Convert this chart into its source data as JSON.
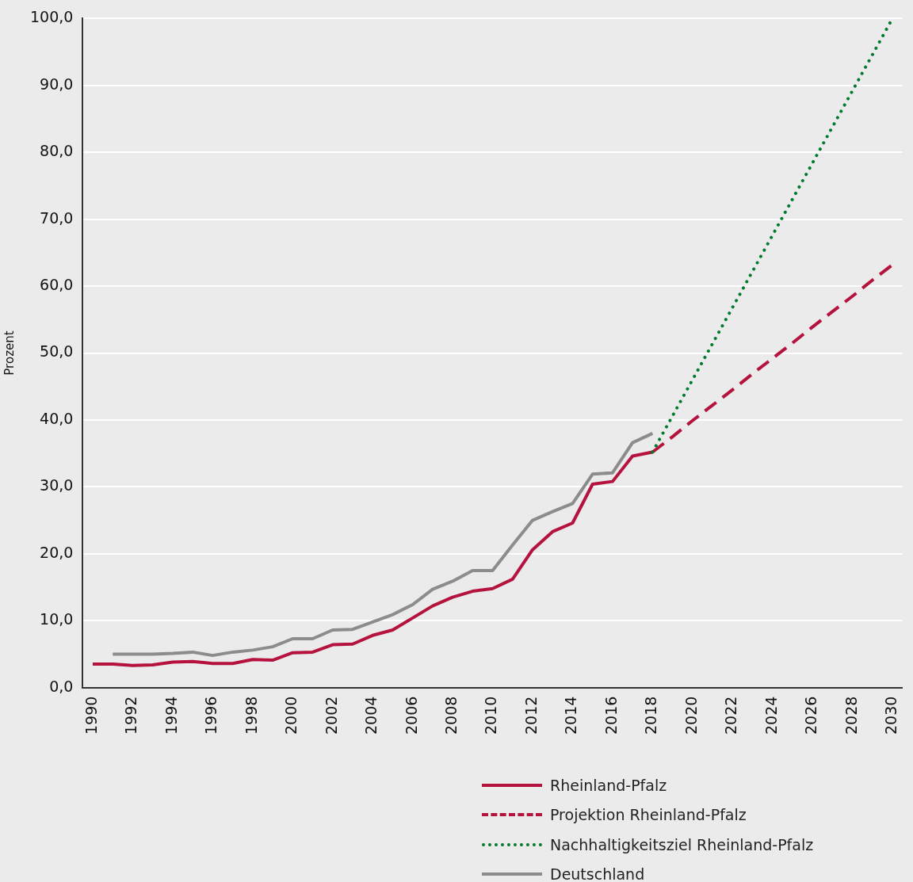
{
  "chart_data": {
    "type": "line",
    "ylabel": "Prozent",
    "categories": [
      "1990",
      null,
      "1992",
      null,
      "1994",
      null,
      "1996",
      null,
      "1998",
      null,
      "2000",
      null,
      "2002",
      null,
      "2004",
      null,
      "2006",
      null,
      "2008",
      null,
      "2010",
      null,
      "2012",
      null,
      "2014",
      null,
      "2016",
      null,
      "2018",
      null,
      "2020",
      null,
      "2022",
      null,
      "2024",
      null,
      "2026",
      null,
      "2028",
      null,
      "2030"
    ],
    "series": [
      {
        "name": "Rheinland-Pfalz",
        "color": "#b5123e",
        "line_style": "solid",
        "values": [
          3.5,
          3.5,
          3.3,
          3.4,
          3.8,
          3.9,
          3.6,
          3.6,
          4.2,
          4.1,
          5.2,
          5.3,
          6.4,
          6.5,
          7.8,
          8.6,
          10.4,
          12.2,
          13.5,
          14.4,
          14.8,
          16.2,
          20.6,
          23.3,
          24.6,
          30.4,
          30.8,
          34.6,
          35.2,
          null,
          null,
          null,
          null,
          null,
          null,
          null,
          null,
          null,
          null,
          null,
          null
        ]
      },
      {
        "name": "Projektion Rheinland-Pfalz",
        "color": "#b5123e",
        "line_style": "dashed",
        "values": [
          null,
          null,
          null,
          null,
          null,
          null,
          null,
          null,
          null,
          null,
          null,
          null,
          null,
          null,
          null,
          null,
          null,
          null,
          null,
          null,
          null,
          null,
          null,
          null,
          null,
          null,
          null,
          null,
          35.2,
          37.5,
          39.9,
          42.2,
          44.5,
          46.9,
          49.2,
          51.5,
          53.9,
          56.2,
          58.5,
          60.9,
          63.2
        ]
      },
      {
        "name": "Nachhaltigkeitsziel Rheinland-Pfalz",
        "color": "#007a2c",
        "line_style": "dotted",
        "values": [
          null,
          null,
          null,
          null,
          null,
          null,
          null,
          null,
          null,
          null,
          null,
          null,
          null,
          null,
          null,
          null,
          null,
          null,
          null,
          null,
          null,
          null,
          null,
          null,
          null,
          null,
          null,
          null,
          35.2,
          40.6,
          46.0,
          51.4,
          56.8,
          62.2,
          67.6,
          73.0,
          78.4,
          83.8,
          89.2,
          94.6,
          100
        ]
      },
      {
        "name": "Deutschland",
        "color": "#8c8c8c",
        "line_style": "solid",
        "values": [
          null,
          5.0,
          5.0,
          5.0,
          5.1,
          5.3,
          4.8,
          5.3,
          5.6,
          6.1,
          7.3,
          7.3,
          8.6,
          8.7,
          9.8,
          10.9,
          12.4,
          14.7,
          15.9,
          17.5,
          17.5,
          21.3,
          25.0,
          26.3,
          27.5,
          31.9,
          32.1,
          36.6,
          38.0,
          null,
          null,
          null,
          null,
          null,
          null,
          null,
          null,
          null,
          null,
          null,
          null
        ]
      }
    ],
    "ylim": [
      0,
      100
    ],
    "yticks": [
      {
        "value": 0,
        "label": "0,0"
      },
      {
        "value": 10,
        "label": "10,0"
      },
      {
        "value": 20,
        "label": "20,0"
      },
      {
        "value": 30,
        "label": "30,0"
      },
      {
        "value": 40,
        "label": "40,0"
      },
      {
        "value": 50,
        "label": "50,0"
      },
      {
        "value": 60,
        "label": "60,0"
      },
      {
        "value": 70,
        "label": "70,0"
      },
      {
        "value": 80,
        "label": "80,0"
      },
      {
        "value": 90,
        "label": "90,0"
      },
      {
        "value": 100,
        "label": "100,0"
      }
    ],
    "grid": "y",
    "legend": "bottom",
    "marker": "none"
  }
}
